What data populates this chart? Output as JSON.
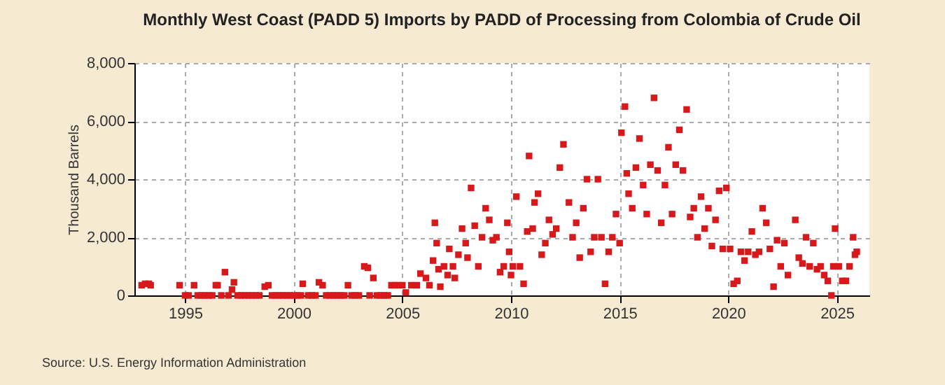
{
  "chart_data": {
    "type": "scatter",
    "title": "Monthly West Coast (PADD 5) Imports by PADD of Processing from Colombia of Crude Oil",
    "ylabel": "Thousand Barrels",
    "annotations": [
      "Source: U.S. Energy Information Administration"
    ],
    "marker": "square",
    "grid": true,
    "xlim": [
      "1992-09",
      "2026-07"
    ],
    "ylim": [
      0,
      8000
    ],
    "xticks": [
      {
        "value": "1995",
        "label": "1995"
      },
      {
        "value": "2000",
        "label": "2000"
      },
      {
        "value": "2005",
        "label": "2005"
      },
      {
        "value": "2010",
        "label": "2010"
      },
      {
        "value": "2015",
        "label": "2015"
      },
      {
        "value": "2020",
        "label": "2020"
      },
      {
        "value": "2025",
        "label": "2025"
      }
    ],
    "yticks": [
      {
        "value": 0,
        "label": "0"
      },
      {
        "value": 2000,
        "label": "2,000"
      },
      {
        "value": 4000,
        "label": "4,000"
      },
      {
        "value": 6000,
        "label": "6,000"
      },
      {
        "value": 8000,
        "label": "8,000"
      }
    ],
    "series": [
      {
        "color": "#d7191c",
        "x": [
          "1993-01",
          "1993-03",
          "1993-05",
          "1993-06",
          "1994-10",
          "1995-01",
          "1995-03",
          "1995-06",
          "1995-08",
          "1995-10",
          "1995-12",
          "1996-02",
          "1996-04",
          "1996-06",
          "1996-07",
          "1996-09",
          "1996-11",
          "1997-01",
          "1997-03",
          "1997-04",
          "1997-06",
          "1997-08",
          "1997-10",
          "1997-12",
          "1998-02",
          "1998-04",
          "1998-06",
          "1998-09",
          "1998-11",
          "1999-01",
          "1999-03",
          "1999-05",
          "1999-07",
          "1999-09",
          "1999-11",
          "2000-01",
          "2000-03",
          "2000-05",
          "2000-06",
          "2000-09",
          "2000-11",
          "2001-01",
          "2001-03",
          "2001-05",
          "2001-07",
          "2001-09",
          "2001-11",
          "2002-01",
          "2002-03",
          "2002-05",
          "2002-07",
          "2002-09",
          "2002-11",
          "2003-01",
          "2003-04",
          "2003-06",
          "2003-07",
          "2003-09",
          "2003-11",
          "2004-01",
          "2004-03",
          "2004-05",
          "2004-07",
          "2004-09",
          "2004-11",
          "2005-01",
          "2005-03",
          "2005-06",
          "2005-09",
          "2005-11",
          "2006-02",
          "2006-04",
          "2006-06",
          "2006-07",
          "2006-08",
          "2006-09",
          "2006-10",
          "2006-12",
          "2007-02",
          "2007-03",
          "2007-05",
          "2007-06",
          "2007-08",
          "2007-10",
          "2007-12",
          "2008-01",
          "2008-03",
          "2008-05",
          "2008-07",
          "2008-09",
          "2008-11",
          "2009-01",
          "2009-03",
          "2009-05",
          "2009-07",
          "2009-09",
          "2009-11",
          "2009-12",
          "2010-01",
          "2010-02",
          "2010-04",
          "2010-06",
          "2010-08",
          "2010-10",
          "2010-11",
          "2011-01",
          "2011-02",
          "2011-04",
          "2011-06",
          "2011-08",
          "2011-10",
          "2011-12",
          "2012-02",
          "2012-04",
          "2012-06",
          "2012-09",
          "2012-11",
          "2013-01",
          "2013-03",
          "2013-05",
          "2013-07",
          "2013-09",
          "2013-11",
          "2014-01",
          "2014-03",
          "2014-05",
          "2014-07",
          "2014-09",
          "2014-11",
          "2015-01",
          "2015-02",
          "2015-04",
          "2015-05",
          "2015-06",
          "2015-08",
          "2015-10",
          "2015-12",
          "2016-02",
          "2016-04",
          "2016-06",
          "2016-08",
          "2016-10",
          "2016-12",
          "2017-02",
          "2017-04",
          "2017-06",
          "2017-08",
          "2017-10",
          "2017-12",
          "2018-02",
          "2018-04",
          "2018-06",
          "2018-08",
          "2018-10",
          "2018-12",
          "2019-02",
          "2019-04",
          "2019-06",
          "2019-08",
          "2019-10",
          "2019-12",
          "2020-02",
          "2020-04",
          "2020-06",
          "2020-08",
          "2020-10",
          "2020-12",
          "2021-02",
          "2021-04",
          "2021-06",
          "2021-08",
          "2021-10",
          "2021-12",
          "2022-02",
          "2022-04",
          "2022-06",
          "2022-08",
          "2022-10",
          "2023-02",
          "2023-04",
          "2023-06",
          "2023-08",
          "2023-10",
          "2023-12",
          "2024-02",
          "2024-04",
          "2024-06",
          "2024-08",
          "2024-10",
          "2024-11",
          "2024-12",
          "2025-02",
          "2025-04",
          "2025-06",
          "2025-08",
          "2025-10",
          "2025-11",
          "2025-12"
        ],
        "values": [
          350,
          400,
          400,
          350,
          350,
          0,
          0,
          350,
          0,
          0,
          0,
          0,
          0,
          350,
          350,
          0,
          800,
          0,
          200,
          450,
          0,
          0,
          0,
          0,
          0,
          0,
          0,
          300,
          350,
          0,
          0,
          0,
          0,
          0,
          0,
          0,
          0,
          0,
          400,
          0,
          0,
          0,
          450,
          350,
          0,
          0,
          0,
          0,
          0,
          0,
          350,
          0,
          0,
          0,
          1000,
          950,
          0,
          600,
          0,
          0,
          0,
          0,
          350,
          350,
          350,
          350,
          100,
          350,
          350,
          750,
          600,
          350,
          1200,
          2500,
          1800,
          900,
          300,
          1000,
          700,
          1600,
          1000,
          600,
          1400,
          2300,
          1800,
          1300,
          3700,
          2400,
          1000,
          2000,
          3000,
          2600,
          1900,
          2000,
          800,
          1000,
          2500,
          1500,
          700,
          1000,
          3400,
          1000,
          400,
          2200,
          4800,
          2300,
          3200,
          3500,
          1400,
          1800,
          2600,
          2100,
          2300,
          4400,
          5200,
          3200,
          2000,
          2500,
          1300,
          3000,
          4000,
          1500,
          2000,
          4000,
          2000,
          400,
          1500,
          2000,
          2800,
          1800,
          5600,
          6500,
          4200,
          3500,
          3000,
          4400,
          5400,
          3800,
          2800,
          4500,
          6800,
          4300,
          2500,
          3800,
          5100,
          2800,
          4500,
          5700,
          4300,
          6400,
          2700,
          3000,
          2000,
          3400,
          2300,
          3000,
          1700,
          2600,
          3600,
          1600,
          3700,
          1600,
          400,
          500,
          1500,
          1200,
          1500,
          2200,
          1400,
          1500,
          3000,
          2500,
          1600,
          300,
          1900,
          1000,
          1800,
          700,
          2600,
          1300,
          1100,
          2000,
          1000,
          1800,
          900,
          1000,
          700,
          500,
          0,
          1000,
          2300,
          1000,
          500,
          500,
          1000,
          2000,
          1400,
          1500
        ]
      }
    ]
  }
}
